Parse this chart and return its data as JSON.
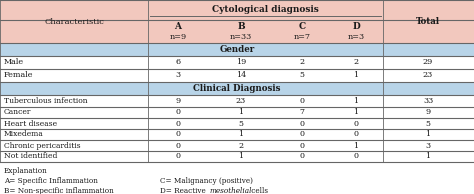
{
  "title": "Cytological diagnosis",
  "col_headers": [
    "Characteristic",
    "A",
    "B",
    "C",
    "D",
    "Total"
  ],
  "col_sub": [
    "",
    "n=9",
    "n=33",
    "n=7",
    "n=3",
    ""
  ],
  "section_gender": "Gender",
  "gender_rows": [
    [
      "Male",
      "6",
      "19",
      "2",
      "2",
      "29"
    ],
    [
      "Female",
      "3",
      "14",
      "5",
      "1",
      "23"
    ]
  ],
  "section_clinical": "Clinical Diagnosis",
  "clinical_rows": [
    [
      "Tuberculous infection",
      "9",
      "23",
      "0",
      "1",
      "33"
    ],
    [
      "Cancer",
      "0",
      "1",
      "7",
      "1",
      "9"
    ],
    [
      "Heart disease",
      "0",
      "5",
      "0",
      "0",
      "5"
    ],
    [
      "Mixedema",
      "0",
      "1",
      "0",
      "0",
      "1"
    ],
    [
      "Chronic pericarditis",
      "0",
      "2",
      "0",
      "1",
      "3"
    ],
    [
      "Not identified",
      "0",
      "1",
      "0",
      "0",
      "1"
    ]
  ],
  "header_bg": "#f2c8be",
  "section_bg": "#b8d4e8",
  "white_bg": "#ffffff",
  "text_color": "#1a1a1a",
  "line_color": "#666666"
}
